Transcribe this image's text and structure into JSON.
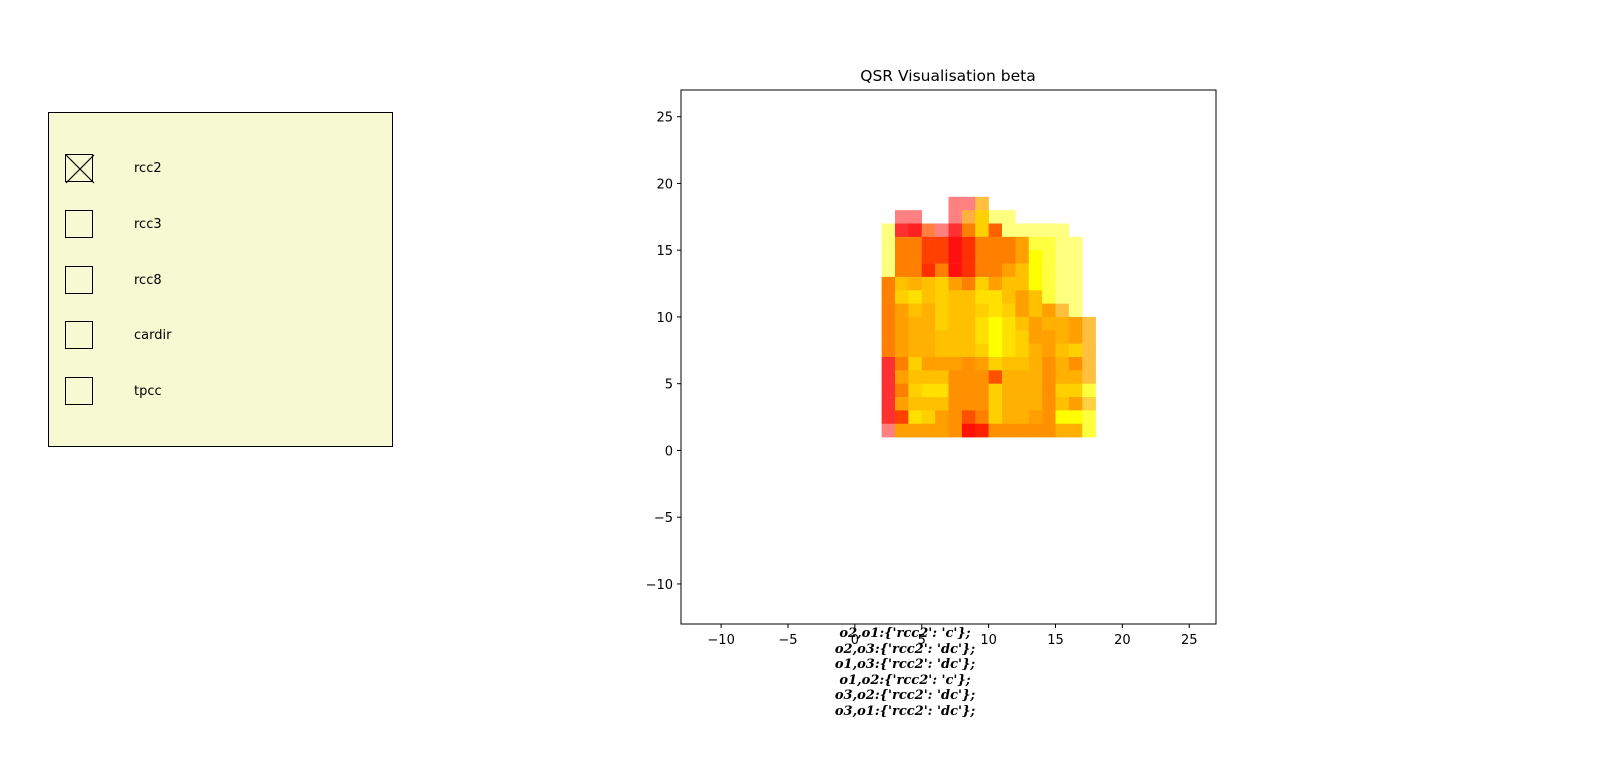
{
  "check_panel": {
    "options": [
      {
        "label": "rcc2",
        "checked": true
      },
      {
        "label": "rcc3",
        "checked": false
      },
      {
        "label": "rcc8",
        "checked": false
      },
      {
        "label": "cardir",
        "checked": false
      },
      {
        "label": "tpcc",
        "checked": false
      }
    ],
    "background": "#f7f9d3"
  },
  "chart_data": {
    "type": "heatmap",
    "title": "QSR Visualisation beta",
    "xlabel": "",
    "ylabel": "",
    "xlim": [
      -13,
      27
    ],
    "ylim": [
      -13,
      27
    ],
    "xticks": [
      -10,
      -5,
      0,
      5,
      10,
      15,
      20,
      25
    ],
    "yticks": [
      25,
      20,
      15,
      10,
      5,
      0,
      -5,
      -10
    ],
    "grid": false,
    "cells": [
      [
        3,
        17,
        "#ff8080"
      ],
      [
        4,
        17,
        "#ff8080"
      ],
      [
        7,
        18,
        "#ff8080"
      ],
      [
        8,
        18,
        "#ff8080"
      ],
      [
        9,
        18,
        "#ffc040"
      ],
      [
        10,
        17,
        "#ffff80"
      ],
      [
        11,
        17,
        "#ffff80"
      ],
      [
        7,
        17,
        "#ff8080"
      ],
      [
        8,
        17,
        "#ffb040"
      ],
      [
        9,
        17,
        "#ffd000"
      ],
      [
        2,
        16,
        "#ffff80"
      ],
      [
        3,
        16,
        "#ff3030"
      ],
      [
        4,
        16,
        "#ff2020"
      ],
      [
        5,
        16,
        "#ff8040"
      ],
      [
        6,
        16,
        "#ff8080"
      ],
      [
        7,
        16,
        "#ff3030"
      ],
      [
        8,
        16,
        "#ff8000"
      ],
      [
        9,
        16,
        "#ffd000"
      ],
      [
        10,
        16,
        "#ff6000"
      ],
      [
        11,
        16,
        "#ffff80"
      ],
      [
        12,
        16,
        "#ffff80"
      ],
      [
        13,
        16,
        "#ffff80"
      ],
      [
        14,
        16,
        "#ffff80"
      ],
      [
        15,
        16,
        "#ffff80"
      ],
      [
        2,
        15,
        "#ffff80"
      ],
      [
        3,
        15,
        "#ff8000"
      ],
      [
        4,
        15,
        "#ff8000"
      ],
      [
        5,
        15,
        "#ff4000"
      ],
      [
        6,
        15,
        "#ff4000"
      ],
      [
        7,
        15,
        "#ff1010"
      ],
      [
        8,
        15,
        "#ff3000"
      ],
      [
        9,
        15,
        "#ff8000"
      ],
      [
        10,
        15,
        "#ff8000"
      ],
      [
        11,
        15,
        "#ff8000"
      ],
      [
        12,
        15,
        "#ffa000"
      ],
      [
        13,
        15,
        "#ffff40"
      ],
      [
        14,
        15,
        "#ffff40"
      ],
      [
        15,
        15,
        "#ffff80"
      ],
      [
        16,
        15,
        "#ffff80"
      ],
      [
        2,
        14,
        "#ffff80"
      ],
      [
        3,
        14,
        "#ff8000"
      ],
      [
        4,
        14,
        "#ff8000"
      ],
      [
        5,
        14,
        "#ff4000"
      ],
      [
        6,
        14,
        "#ff4000"
      ],
      [
        7,
        14,
        "#ff1010"
      ],
      [
        8,
        14,
        "#ff3000"
      ],
      [
        9,
        14,
        "#ff8000"
      ],
      [
        10,
        14,
        "#ff8000"
      ],
      [
        11,
        14,
        "#ff8000"
      ],
      [
        12,
        14,
        "#ffa000"
      ],
      [
        13,
        14,
        "#ffff00"
      ],
      [
        14,
        14,
        "#ffff40"
      ],
      [
        15,
        14,
        "#ffff80"
      ],
      [
        16,
        14,
        "#ffff80"
      ],
      [
        2,
        13,
        "#ffff80"
      ],
      [
        3,
        13,
        "#ff8000"
      ],
      [
        4,
        13,
        "#ff8000"
      ],
      [
        5,
        13,
        "#ff3000"
      ],
      [
        6,
        13,
        "#ff8000"
      ],
      [
        7,
        13,
        "#ff1010"
      ],
      [
        8,
        13,
        "#ff3000"
      ],
      [
        9,
        13,
        "#ff8000"
      ],
      [
        10,
        13,
        "#ff8000"
      ],
      [
        11,
        13,
        "#ffa000"
      ],
      [
        12,
        13,
        "#ffc000"
      ],
      [
        13,
        13,
        "#ffff00"
      ],
      [
        14,
        13,
        "#ffff40"
      ],
      [
        15,
        13,
        "#ffff80"
      ],
      [
        16,
        13,
        "#ffff80"
      ],
      [
        2,
        12,
        "#ff8000"
      ],
      [
        3,
        12,
        "#ffc000"
      ],
      [
        4,
        12,
        "#ffb000"
      ],
      [
        5,
        12,
        "#ffc000"
      ],
      [
        6,
        12,
        "#ffd000"
      ],
      [
        7,
        12,
        "#ffa000"
      ],
      [
        8,
        12,
        "#ff8000"
      ],
      [
        9,
        12,
        "#ffd000"
      ],
      [
        10,
        12,
        "#ffa000"
      ],
      [
        11,
        12,
        "#ffc000"
      ],
      [
        12,
        12,
        "#ffc000"
      ],
      [
        13,
        12,
        "#ffff00"
      ],
      [
        14,
        12,
        "#ffff40"
      ],
      [
        15,
        12,
        "#ffff80"
      ],
      [
        16,
        12,
        "#ffff80"
      ],
      [
        2,
        11,
        "#ff8000"
      ],
      [
        3,
        11,
        "#ffd000"
      ],
      [
        4,
        11,
        "#ffe000"
      ],
      [
        5,
        11,
        "#ffc000"
      ],
      [
        6,
        11,
        "#ffd000"
      ],
      [
        7,
        11,
        "#ffc000"
      ],
      [
        8,
        11,
        "#ffc000"
      ],
      [
        9,
        11,
        "#ffe000"
      ],
      [
        10,
        11,
        "#ffe000"
      ],
      [
        11,
        11,
        "#ffc000"
      ],
      [
        12,
        11,
        "#ffa000"
      ],
      [
        13,
        11,
        "#ffc000"
      ],
      [
        14,
        11,
        "#ffff40"
      ],
      [
        15,
        11,
        "#ffff80"
      ],
      [
        16,
        11,
        "#ffff80"
      ],
      [
        2,
        10,
        "#ff8000"
      ],
      [
        3,
        10,
        "#ffa000"
      ],
      [
        4,
        10,
        "#ffc000"
      ],
      [
        5,
        10,
        "#ffb000"
      ],
      [
        6,
        10,
        "#ffd000"
      ],
      [
        7,
        10,
        "#ffc000"
      ],
      [
        8,
        10,
        "#ffc000"
      ],
      [
        9,
        10,
        "#ffd000"
      ],
      [
        10,
        10,
        "#ffe000"
      ],
      [
        11,
        10,
        "#ffd000"
      ],
      [
        12,
        10,
        "#ffa000"
      ],
      [
        13,
        10,
        "#ffc000"
      ],
      [
        14,
        10,
        "#ffa000"
      ],
      [
        15,
        10,
        "#ffc040"
      ],
      [
        16,
        10,
        "#ffff80"
      ],
      [
        2,
        9,
        "#ff8000"
      ],
      [
        3,
        9,
        "#ffa000"
      ],
      [
        4,
        9,
        "#ffb000"
      ],
      [
        5,
        9,
        "#ffb000"
      ],
      [
        6,
        9,
        "#ffd000"
      ],
      [
        7,
        9,
        "#ffc000"
      ],
      [
        8,
        9,
        "#ffc000"
      ],
      [
        9,
        9,
        "#ffe000"
      ],
      [
        10,
        9,
        "#ffff00"
      ],
      [
        11,
        9,
        "#ffe000"
      ],
      [
        12,
        9,
        "#ffc000"
      ],
      [
        13,
        9,
        "#ffa000"
      ],
      [
        14,
        9,
        "#ffb000"
      ],
      [
        15,
        9,
        "#ffb000"
      ],
      [
        16,
        9,
        "#ffa000"
      ],
      [
        17,
        9,
        "#ffc040"
      ],
      [
        2,
        8,
        "#ff8000"
      ],
      [
        3,
        8,
        "#ffa000"
      ],
      [
        4,
        8,
        "#ffb000"
      ],
      [
        5,
        8,
        "#ffb000"
      ],
      [
        6,
        8,
        "#ffc000"
      ],
      [
        7,
        8,
        "#ffc000"
      ],
      [
        8,
        8,
        "#ffc000"
      ],
      [
        9,
        8,
        "#ffe000"
      ],
      [
        10,
        8,
        "#ffff00"
      ],
      [
        11,
        8,
        "#ffe000"
      ],
      [
        12,
        8,
        "#ffd000"
      ],
      [
        13,
        8,
        "#ffa000"
      ],
      [
        14,
        8,
        "#ffa000"
      ],
      [
        15,
        8,
        "#ffb000"
      ],
      [
        16,
        8,
        "#ffa000"
      ],
      [
        17,
        8,
        "#ffc040"
      ],
      [
        2,
        7,
        "#ff8000"
      ],
      [
        3,
        7,
        "#ffa000"
      ],
      [
        4,
        7,
        "#ffb000"
      ],
      [
        5,
        7,
        "#ffb000"
      ],
      [
        6,
        7,
        "#ffc000"
      ],
      [
        7,
        7,
        "#ffc000"
      ],
      [
        8,
        7,
        "#ffc000"
      ],
      [
        9,
        7,
        "#ffd000"
      ],
      [
        10,
        7,
        "#ffff00"
      ],
      [
        11,
        7,
        "#ffe000"
      ],
      [
        12,
        7,
        "#ffd000"
      ],
      [
        13,
        7,
        "#ffb000"
      ],
      [
        14,
        7,
        "#ffa000"
      ],
      [
        15,
        7,
        "#ffc000"
      ],
      [
        16,
        7,
        "#ffd000"
      ],
      [
        17,
        7,
        "#ffc040"
      ],
      [
        2,
        6,
        "#ff3030"
      ],
      [
        3,
        6,
        "#ff8000"
      ],
      [
        4,
        6,
        "#ffd000"
      ],
      [
        5,
        6,
        "#ffa000"
      ],
      [
        6,
        6,
        "#ffa000"
      ],
      [
        7,
        6,
        "#ffa000"
      ],
      [
        8,
        6,
        "#ff9000"
      ],
      [
        9,
        6,
        "#ffa000"
      ],
      [
        10,
        6,
        "#ffd000"
      ],
      [
        11,
        6,
        "#ffc000"
      ],
      [
        12,
        6,
        "#ffc000"
      ],
      [
        13,
        6,
        "#ffb000"
      ],
      [
        14,
        6,
        "#ff9000"
      ],
      [
        15,
        6,
        "#ffb000"
      ],
      [
        16,
        6,
        "#ff9000"
      ],
      [
        17,
        6,
        "#ffc040"
      ],
      [
        2,
        5,
        "#ff3030"
      ],
      [
        3,
        5,
        "#ffa000"
      ],
      [
        4,
        5,
        "#ffc000"
      ],
      [
        5,
        5,
        "#ffc000"
      ],
      [
        6,
        5,
        "#ffc000"
      ],
      [
        7,
        5,
        "#ff9000"
      ],
      [
        8,
        5,
        "#ff9000"
      ],
      [
        9,
        5,
        "#ff9000"
      ],
      [
        10,
        5,
        "#ff5000"
      ],
      [
        11,
        5,
        "#ffb000"
      ],
      [
        12,
        5,
        "#ffb000"
      ],
      [
        13,
        5,
        "#ffb000"
      ],
      [
        14,
        5,
        "#ff9000"
      ],
      [
        15,
        5,
        "#ffb000"
      ],
      [
        16,
        5,
        "#ffb000"
      ],
      [
        17,
        5,
        "#ffc040"
      ],
      [
        2,
        4,
        "#ff3030"
      ],
      [
        3,
        4,
        "#ff8000"
      ],
      [
        4,
        4,
        "#ffd000"
      ],
      [
        5,
        4,
        "#ffe000"
      ],
      [
        6,
        4,
        "#ffe000"
      ],
      [
        7,
        4,
        "#ff9000"
      ],
      [
        8,
        4,
        "#ff9000"
      ],
      [
        9,
        4,
        "#ff9000"
      ],
      [
        10,
        4,
        "#ffd000"
      ],
      [
        11,
        4,
        "#ffb000"
      ],
      [
        12,
        4,
        "#ffb000"
      ],
      [
        13,
        4,
        "#ffb000"
      ],
      [
        14,
        4,
        "#ff9000"
      ],
      [
        15,
        4,
        "#ffd000"
      ],
      [
        16,
        4,
        "#ffd000"
      ],
      [
        17,
        4,
        "#ffff40"
      ],
      [
        2,
        3,
        "#ff3030"
      ],
      [
        3,
        3,
        "#ffa000"
      ],
      [
        4,
        3,
        "#ffc000"
      ],
      [
        5,
        3,
        "#ffc000"
      ],
      [
        6,
        3,
        "#ffc000"
      ],
      [
        7,
        3,
        "#ff9000"
      ],
      [
        8,
        3,
        "#ff9000"
      ],
      [
        9,
        3,
        "#ff9000"
      ],
      [
        10,
        3,
        "#ffd000"
      ],
      [
        11,
        3,
        "#ffb000"
      ],
      [
        12,
        3,
        "#ffb000"
      ],
      [
        13,
        3,
        "#ffb000"
      ],
      [
        14,
        3,
        "#ff9000"
      ],
      [
        15,
        3,
        "#ffc000"
      ],
      [
        16,
        3,
        "#ffa000"
      ],
      [
        17,
        3,
        "#ffd040"
      ],
      [
        2,
        2,
        "#ff3030"
      ],
      [
        3,
        2,
        "#ff4000"
      ],
      [
        4,
        2,
        "#ffe000"
      ],
      [
        5,
        2,
        "#ffd000"
      ],
      [
        6,
        2,
        "#ffa000"
      ],
      [
        7,
        2,
        "#ff9000"
      ],
      [
        8,
        2,
        "#ff5000"
      ],
      [
        9,
        2,
        "#ff8000"
      ],
      [
        10,
        2,
        "#ffd000"
      ],
      [
        11,
        2,
        "#ffb000"
      ],
      [
        12,
        2,
        "#ffb000"
      ],
      [
        13,
        2,
        "#ffa000"
      ],
      [
        14,
        2,
        "#ff9000"
      ],
      [
        15,
        2,
        "#ffff00"
      ],
      [
        16,
        2,
        "#ffff00"
      ],
      [
        17,
        2,
        "#ffff40"
      ],
      [
        2,
        1,
        "#ff8080"
      ],
      [
        3,
        1,
        "#ffa000"
      ],
      [
        4,
        1,
        "#ffa000"
      ],
      [
        5,
        1,
        "#ffa000"
      ],
      [
        6,
        1,
        "#ffa000"
      ],
      [
        7,
        1,
        "#ff9000"
      ],
      [
        8,
        1,
        "#ff1000"
      ],
      [
        9,
        1,
        "#ff2000"
      ],
      [
        10,
        1,
        "#ff9000"
      ],
      [
        11,
        1,
        "#ff9000"
      ],
      [
        12,
        1,
        "#ff9000"
      ],
      [
        13,
        1,
        "#ff9000"
      ],
      [
        14,
        1,
        "#ff9000"
      ],
      [
        15,
        1,
        "#ffb000"
      ],
      [
        16,
        1,
        "#ffb000"
      ],
      [
        17,
        1,
        "#ffff40"
      ]
    ]
  },
  "annotation_lines": [
    "o2,o1:{'rcc2': 'c'};",
    "o2,o3:{'rcc2': 'dc'};",
    "o1,o3:{'rcc2': 'dc'};",
    "o1,o2:{'rcc2': 'c'};",
    "o3,o2:{'rcc2': 'dc'};",
    "o3,o1:{'rcc2': 'dc'};"
  ]
}
